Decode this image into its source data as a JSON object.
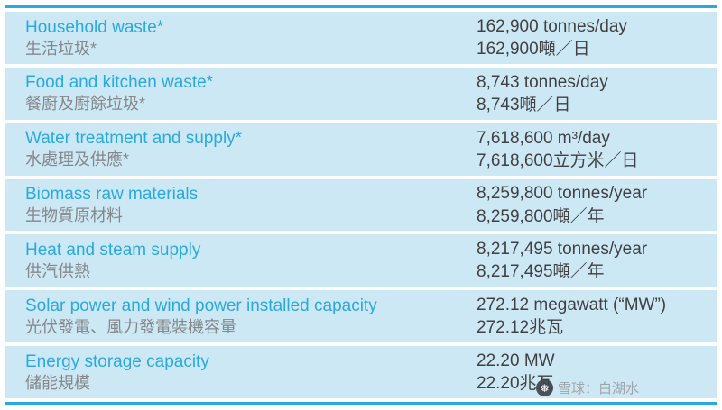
{
  "table": {
    "rows": [
      {
        "label_en": "Household waste*",
        "label_zh": "生活垃圾*",
        "value_en": "162,900 tonnes/day",
        "value_zh": "162,900噸／日"
      },
      {
        "label_en": "Food and kitchen waste*",
        "label_zh": "餐廚及廚餘垃圾*",
        "value_en": "8,743 tonnes/day",
        "value_zh": "8,743噸／日"
      },
      {
        "label_en": "Water treatment and supply*",
        "label_zh": "水處理及供應*",
        "value_en": "7,618,600 m³/day",
        "value_zh": "7,618,600立方米／日"
      },
      {
        "label_en": "Biomass raw materials",
        "label_zh": "生物質原材料",
        "value_en": "8,259,800 tonnes/year",
        "value_zh": "8,259,800噸／年"
      },
      {
        "label_en": "Heat and steam supply",
        "label_zh": "供汽供熱",
        "value_en": "8,217,495 tonnes/year",
        "value_zh": "8,217,495噸／年"
      },
      {
        "label_en": "Solar power and wind power installed capacity",
        "label_zh": "光伏發電、風力發電裝機容量",
        "value_en": "272.12 megawatt (“MW”)",
        "value_zh": "272.12兆瓦"
      },
      {
        "label_en": "Energy storage capacity",
        "label_zh": "儲能規模",
        "value_en": "22.20 MW",
        "value_zh": "22.20兆瓦"
      }
    ]
  },
  "watermark": {
    "text": "雪球：白湖水",
    "logo_glyph": "❅"
  },
  "colors": {
    "accent": "#29a9e0",
    "row_bg": "#cde8f5",
    "label_en": "#29a9e0",
    "label_zh": "#85878a",
    "value": "#414042"
  }
}
